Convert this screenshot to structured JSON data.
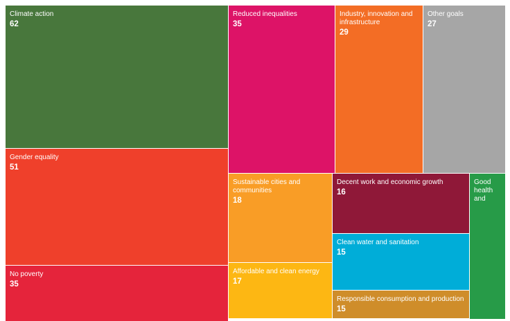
{
  "chart_data": {
    "type": "treemap",
    "items": [
      {
        "label": "Climate action",
        "value": 62,
        "color": "#48773C"
      },
      {
        "label": "Gender equality",
        "value": 51,
        "color": "#EF402B"
      },
      {
        "label": "No poverty",
        "value": 35,
        "color": "#E5243B"
      },
      {
        "label": "Reduced inequalities",
        "value": 35,
        "color": "#DD1367"
      },
      {
        "label": "Industry, innovation and infrastructure",
        "value": 29,
        "color": "#F36D25"
      },
      {
        "label": "Other goals",
        "value": 27,
        "color": "#A6A6A6"
      },
      {
        "label": "Sustainable cities and communities",
        "value": 18,
        "color": "#F99D26"
      },
      {
        "label": "Affordable and clean energy",
        "value": 17,
        "color": "#FDB713"
      },
      {
        "label": "Decent work and economic growth",
        "value": 16,
        "color": "#8F1838"
      },
      {
        "label": "Clean water and sanitation",
        "value": 15,
        "color": "#00ADD8"
      },
      {
        "label": "Responsible consumption and production",
        "value": 15,
        "color": "#CF8D2A"
      },
      {
        "label": "Good health and",
        "value": null,
        "color": "#279B48"
      }
    ]
  }
}
